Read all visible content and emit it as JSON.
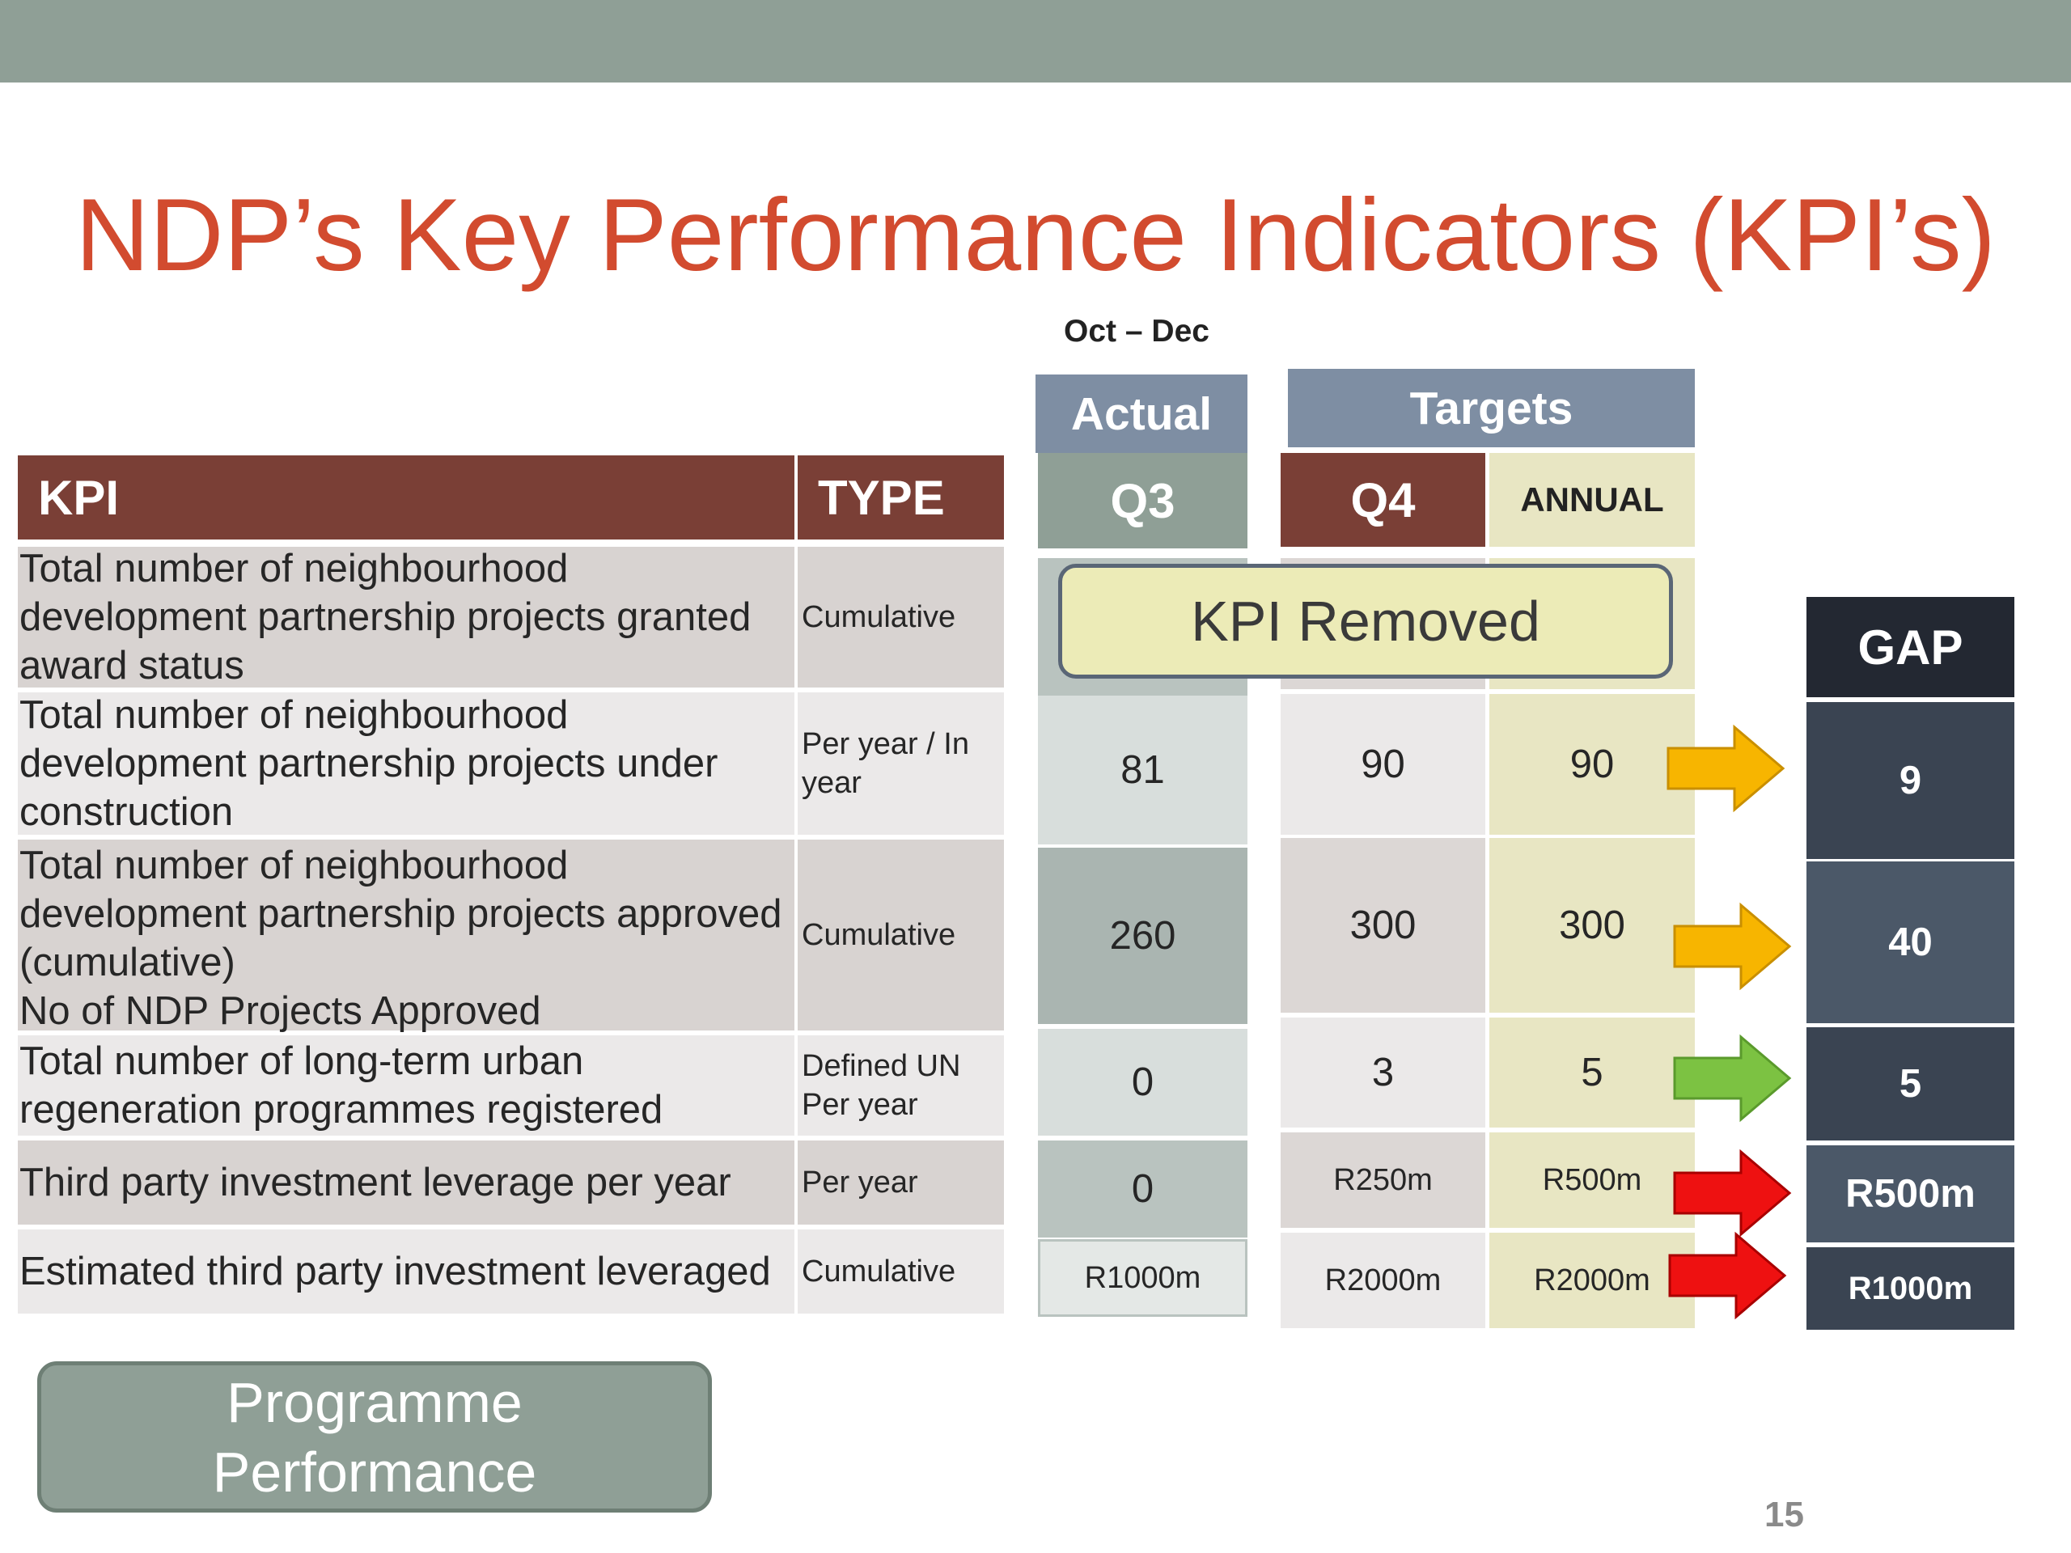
{
  "title": "NDP’s Key Performance Indicators (KPI’s)",
  "period": "Oct – Dec",
  "headers": {
    "kpi": "KPI",
    "type": "TYPE",
    "actual": "Actual",
    "targets": "Targets",
    "q3": "Q3",
    "q4": "Q4",
    "annual": "ANNUAL",
    "gap": "GAP"
  },
  "kpi_removed": "KPI Removed",
  "rows": [
    {
      "kpi": "Total number of neighbourhood development partnership projects granted award status",
      "type": "Cumulative",
      "q3": "",
      "q4": "",
      "annual": "",
      "gap": ""
    },
    {
      "kpi": "Total number of neighbourhood development partnership projects under construction",
      "type": "Per year / In year",
      "q3": "81",
      "q4": "90",
      "annual": "90",
      "gap": "9",
      "arrow_color": "#f7b500"
    },
    {
      "kpi": "Total number of neighbourhood development partnership projects approved (cumulative)",
      "kpi_extra": "No of NDP Projects Approved",
      "type": "Cumulative",
      "q3": "260",
      "q4": "300",
      "annual": "300",
      "gap": "40",
      "arrow_color": "#f7b500"
    },
    {
      "kpi": "Total number of long-term urban regeneration programmes registered",
      "type": "Defined  UN Per year",
      "q3": "0",
      "q4": "3",
      "annual": "5",
      "gap": "5",
      "arrow_color": "#7cc242"
    },
    {
      "kpi": "Third party investment leverage per year",
      "type": "Per year",
      "q3": "0",
      "q4": "R250m",
      "annual": "R500m",
      "gap": "R500m",
      "arrow_color": "#ee1111"
    },
    {
      "kpi": "Estimated third party investment leveraged",
      "type": "Cumulative",
      "q3": "R1000m",
      "q4": "R2000m",
      "annual": "R2000m",
      "gap": "R1000m",
      "arrow_color": "#ee1111"
    }
  ],
  "programme_button": "Programme Performance",
  "page_number": "15",
  "colors": {
    "title": "#d24b2f",
    "header_brown": "#7a3f36",
    "slate": "#7e8ea3",
    "gap_dark": "#3a4452",
    "annual_bg": "#e8e6c3",
    "arrow_orange": "#f7b500",
    "arrow_green": "#7cc242",
    "arrow_red": "#ee1111"
  }
}
